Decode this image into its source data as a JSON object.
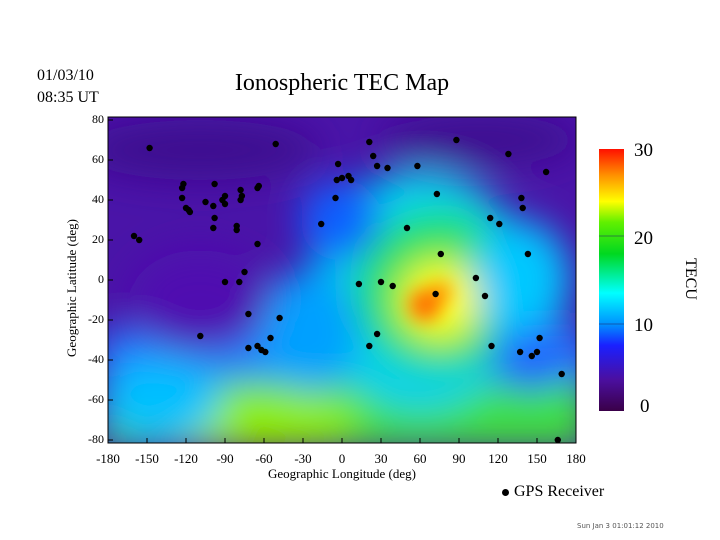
{
  "header": {
    "date": "01/03/10",
    "time": "08:35 UT",
    "title": "Ionospheric TEC Map"
  },
  "chart_data": {
    "type": "heatmap",
    "title": "Ionospheric TEC Map",
    "xlabel": "Geographic Longitude (deg)",
    "ylabel": "Geographic Latitude (deg)",
    "xlim": [
      -180,
      180
    ],
    "ylim": [
      -80,
      80
    ],
    "xticks": [
      "-180",
      "-150",
      "-120",
      "-90",
      "-60",
      "-30",
      "0",
      "30",
      "60",
      "90",
      "120",
      "150",
      "180"
    ],
    "yticks": [
      "80",
      "60",
      "40",
      "20",
      "0",
      "-20",
      "-40",
      "-60",
      "-80"
    ],
    "colorbar": {
      "label": "TECU",
      "range": [
        0,
        30
      ],
      "ticks": [
        "30",
        "20",
        "10",
        "0"
      ],
      "colormap": [
        "#3a0048",
        "#4b0fa0",
        "#1030ff",
        "#00b0ff",
        "#00ffff",
        "#00e000",
        "#40ff00",
        "#ffff00",
        "#ff8000",
        "#ff0000"
      ]
    },
    "tec_max_region": {
      "lon": 60,
      "lat": -10,
      "value": 28
    },
    "receivers": [
      [
        -148,
        66
      ],
      [
        -122,
        48
      ],
      [
        -123,
        46
      ],
      [
        -123,
        41
      ],
      [
        -120,
        36
      ],
      [
        -117,
        34
      ],
      [
        -118,
        35
      ],
      [
        -98,
        48
      ],
      [
        -105,
        39
      ],
      [
        -99,
        37
      ],
      [
        -98,
        31
      ],
      [
        -99,
        26
      ],
      [
        -92,
        40
      ],
      [
        -90,
        42
      ],
      [
        -90,
        38
      ],
      [
        -78,
        45
      ],
      [
        -78,
        40
      ],
      [
        -77,
        42
      ],
      [
        -81,
        27
      ],
      [
        -81,
        25
      ],
      [
        -65,
        46
      ],
      [
        -64,
        47
      ],
      [
        -51,
        68
      ],
      [
        -65,
        18
      ],
      [
        -160,
        22
      ],
      [
        -156,
        20
      ],
      [
        -109,
        -28
      ],
      [
        -90,
        -1
      ],
      [
        -79,
        -1
      ],
      [
        -75,
        4
      ],
      [
        -72,
        -17
      ],
      [
        -72,
        -34
      ],
      [
        -65,
        -33
      ],
      [
        -62,
        -35
      ],
      [
        -59,
        -36
      ],
      [
        -55,
        -29
      ],
      [
        -48,
        -19
      ],
      [
        -5,
        41
      ],
      [
        -4,
        50
      ],
      [
        -3,
        58
      ],
      [
        0,
        51
      ],
      [
        5,
        52
      ],
      [
        7,
        50
      ],
      [
        21,
        69
      ],
      [
        24,
        62
      ],
      [
        27,
        57
      ],
      [
        35,
        56
      ],
      [
        58,
        57
      ],
      [
        73,
        43
      ],
      [
        88,
        70
      ],
      [
        128,
        63
      ],
      [
        157,
        54
      ],
      [
        -16,
        28
      ],
      [
        50,
        26
      ],
      [
        76,
        13
      ],
      [
        114,
        31
      ],
      [
        138,
        41
      ],
      [
        139,
        36
      ],
      [
        121,
        28
      ],
      [
        143,
        13
      ],
      [
        13,
        -2
      ],
      [
        30,
        -1
      ],
      [
        39,
        -3
      ],
      [
        72,
        -7
      ],
      [
        103,
        1
      ],
      [
        110,
        -8
      ],
      [
        115,
        -33
      ],
      [
        137,
        -36
      ],
      [
        146,
        -38
      ],
      [
        150,
        -36
      ],
      [
        152,
        -29
      ],
      [
        27,
        -27
      ],
      [
        21,
        -33
      ],
      [
        169,
        -47
      ],
      [
        166,
        -80
      ]
    ]
  },
  "legend": {
    "label": "GPS Receiver"
  },
  "footer": {
    "timestamp": "Sun Jan  3 01:01:12 2010"
  }
}
